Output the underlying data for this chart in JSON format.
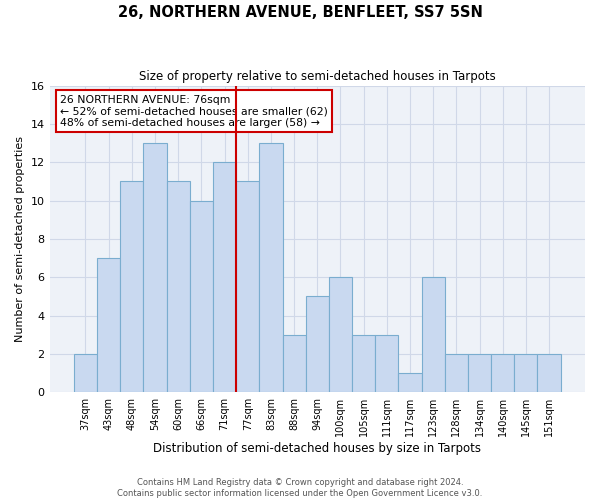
{
  "title": "26, NORTHERN AVENUE, BENFLEET, SS7 5SN",
  "subtitle": "Size of property relative to semi-detached houses in Tarpots",
  "xlabel": "Distribution of semi-detached houses by size in Tarpots",
  "ylabel": "Number of semi-detached properties",
  "bar_labels": [
    "37sqm",
    "43sqm",
    "48sqm",
    "54sqm",
    "60sqm",
    "66sqm",
    "71sqm",
    "77sqm",
    "83sqm",
    "88sqm",
    "94sqm",
    "100sqm",
    "105sqm",
    "111sqm",
    "117sqm",
    "123sqm",
    "128sqm",
    "134sqm",
    "140sqm",
    "145sqm",
    "151sqm"
  ],
  "bar_values": [
    2,
    7,
    11,
    13,
    11,
    10,
    12,
    11,
    13,
    3,
    5,
    6,
    3,
    3,
    1,
    6,
    2,
    2,
    2,
    2,
    2
  ],
  "bar_color": "#c9d9f0",
  "bar_edge_color": "#7aadcf",
  "annotation_title": "26 NORTHERN AVENUE: 76sqm",
  "annotation_line1": "← 52% of semi-detached houses are smaller (62)",
  "annotation_line2": "48% of semi-detached houses are larger (58) →",
  "annotation_box_color": "#ffffff",
  "annotation_box_edge": "#cc0000",
  "reference_line_color": "#cc0000",
  "ylim": [
    0,
    16
  ],
  "yticks": [
    0,
    2,
    4,
    6,
    8,
    10,
    12,
    14,
    16
  ],
  "footer_line1": "Contains HM Land Registry data © Crown copyright and database right 2024.",
  "footer_line2": "Contains public sector information licensed under the Open Government Licence v3.0.",
  "background_color": "#ffffff",
  "grid_color": "#d0d8e8",
  "plot_bg_color": "#eef2f8"
}
